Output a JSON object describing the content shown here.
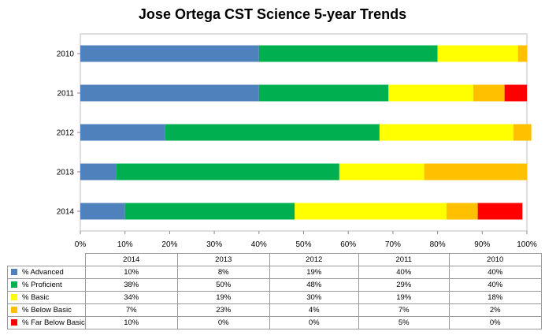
{
  "chart_data": {
    "type": "bar",
    "orientation": "horizontal",
    "stacked": "percent",
    "title": "Jose Ortega CST Science 5-year Trends",
    "categories": [
      "2010",
      "2011",
      "2012",
      "2013",
      "2014"
    ],
    "table_columns": [
      "2014",
      "2013",
      "2012",
      "2011",
      "2010"
    ],
    "x_ticks": [
      "0%",
      "10%",
      "20%",
      "30%",
      "40%",
      "50%",
      "60%",
      "70%",
      "80%",
      "90%",
      "100%"
    ],
    "xlim": [
      0,
      100
    ],
    "grid": false,
    "series": [
      {
        "name": "% Advanced",
        "color": "#4f81bd",
        "values": [
          10,
          8,
          19,
          40,
          40
        ],
        "labels": [
          "10%",
          "8%",
          "19%",
          "40%",
          "40%"
        ]
      },
      {
        "name": "% Proficient",
        "color": "#00b050",
        "values": [
          38,
          50,
          48,
          29,
          40
        ],
        "labels": [
          "38%",
          "50%",
          "48%",
          "29%",
          "40%"
        ]
      },
      {
        "name": "% Basic",
        "color": "#ffff00",
        "values": [
          34,
          19,
          30,
          19,
          18
        ],
        "labels": [
          "34%",
          "19%",
          "30%",
          "19%",
          "18%"
        ]
      },
      {
        "name": "% Below Basic",
        "color": "#ffc000",
        "values": [
          7,
          23,
          4,
          7,
          2
        ],
        "labels": [
          "7%",
          "23%",
          "4%",
          "7%",
          "2%"
        ]
      },
      {
        "name": "% Far Below Basic",
        "color": "#ff0000",
        "values": [
          10,
          0,
          0,
          5,
          0
        ],
        "labels": [
          "10%",
          "0%",
          "0%",
          "5%",
          "0%"
        ]
      }
    ]
  }
}
